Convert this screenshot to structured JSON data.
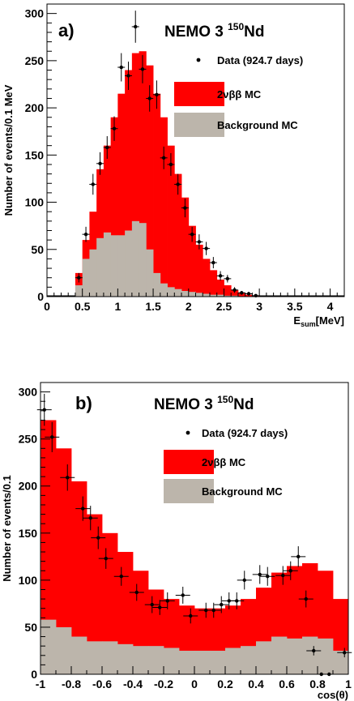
{
  "colors": {
    "signal": "#ff0000",
    "background": "#bcb5ab",
    "data": "#000000",
    "axis": "#000000"
  },
  "chart_data": [
    {
      "type": "bar",
      "panel_label": "a)",
      "experiment": "NEMO 3",
      "isotope_mass": "150",
      "isotope_symbol": "Nd",
      "ylabel": "Number of events/0.1 MeV",
      "xlabel_main": "E",
      "xlabel_sub": "sum",
      "xlabel_unit": "[MeV]",
      "xlim": [
        0,
        4.2
      ],
      "ylim": [
        0,
        310
      ],
      "x_ticks": [
        0,
        0.5,
        1,
        1.5,
        2,
        2.5,
        3,
        3.5,
        4
      ],
      "x_tick_labels": [
        "0",
        "0.5",
        "1",
        "1.5",
        "2",
        "2.5",
        "3",
        "3.5",
        "4"
      ],
      "y_ticks": [
        0,
        50,
        100,
        150,
        200,
        250,
        300
      ],
      "y_tick_labels": [
        "0",
        "50",
        "100",
        "150",
        "200",
        "250",
        "300"
      ],
      "legend": [
        {
          "key": "data",
          "label": "Data (924.7 days)"
        },
        {
          "key": "signal",
          "label": "2νββ MC"
        },
        {
          "key": "background",
          "label": "Background MC"
        }
      ],
      "bin_edges": [
        0.4,
        0.5,
        0.6,
        0.7,
        0.8,
        0.9,
        1.0,
        1.1,
        1.2,
        1.3,
        1.4,
        1.5,
        1.6,
        1.7,
        1.8,
        1.9,
        2.0,
        2.1,
        2.2,
        2.3,
        2.4,
        2.5,
        2.6,
        2.7,
        2.8,
        2.9,
        3.0
      ],
      "total_mc": [
        25,
        60,
        90,
        135,
        160,
        190,
        215,
        240,
        258,
        260,
        245,
        215,
        190,
        160,
        130,
        105,
        75,
        55,
        40,
        28,
        18,
        12,
        7,
        4,
        2,
        1
      ],
      "background_mc": [
        12,
        40,
        50,
        62,
        68,
        65,
        65,
        70,
        80,
        78,
        50,
        25,
        14,
        10,
        8,
        6,
        5,
        4,
        3,
        2,
        2,
        1,
        1,
        0,
        0,
        0
      ],
      "data_points": {
        "x": [
          0.45,
          0.55,
          0.65,
          0.75,
          0.85,
          0.95,
          1.05,
          1.15,
          1.25,
          1.35,
          1.45,
          1.55,
          1.65,
          1.75,
          1.85,
          1.95,
          2.05,
          2.15,
          2.25,
          2.35,
          2.45,
          2.55,
          2.65,
          2.75,
          2.85,
          2.95
        ],
        "y": [
          20,
          66,
          119,
          141,
          158,
          178,
          243,
          234,
          286,
          241,
          210,
          214,
          147,
          140,
          119,
          94,
          66,
          58,
          51,
          36,
          22,
          19,
          7,
          4,
          3,
          1
        ],
        "yerr": [
          5,
          8,
          11,
          12,
          12,
          13,
          15,
          15,
          17,
          15,
          14,
          15,
          12,
          12,
          11,
          10,
          8,
          8,
          7,
          6,
          5,
          4,
          3,
          2,
          2,
          1
        ]
      }
    },
    {
      "type": "bar",
      "panel_label": "b)",
      "experiment": "NEMO 3",
      "isotope_mass": "150",
      "isotope_symbol": "Nd",
      "ylabel": "Number of events/0.1",
      "xlabel": "cos(θ)",
      "xlim": [
        -1,
        1
      ],
      "ylim": [
        0,
        310
      ],
      "x_ticks": [
        -1,
        -0.8,
        -0.6,
        -0.4,
        -0.2,
        0,
        0.2,
        0.4,
        0.6,
        0.8,
        1
      ],
      "x_tick_labels": [
        "-1",
        "-0.8",
        "-0.6",
        "-0.4",
        "-0.2",
        "0",
        "0.2",
        "0.4",
        "0.6",
        "0.8",
        "1"
      ],
      "y_ticks": [
        0,
        50,
        100,
        150,
        200,
        250,
        300
      ],
      "y_tick_labels": [
        "0",
        "50",
        "100",
        "150",
        "200",
        "250",
        "300"
      ],
      "legend": [
        {
          "key": "data",
          "label": "Data (924.7 days)"
        },
        {
          "key": "signal",
          "label": "2νββ MC"
        },
        {
          "key": "background",
          "label": "Background MC"
        }
      ],
      "bin_edges": [
        -1,
        -0.9,
        -0.8,
        -0.7,
        -0.6,
        -0.5,
        -0.4,
        -0.3,
        -0.2,
        -0.1,
        0,
        0.1,
        0.2,
        0.3,
        0.4,
        0.5,
        0.6,
        0.7,
        0.8,
        0.9,
        1.0
      ],
      "total_mc": [
        270,
        240,
        205,
        170,
        150,
        130,
        110,
        90,
        80,
        73,
        70,
        70,
        73,
        80,
        92,
        108,
        115,
        118,
        110,
        80
      ],
      "background_mc": [
        58,
        50,
        40,
        35,
        35,
        32,
        30,
        30,
        28,
        25,
        25,
        25,
        28,
        30,
        35,
        40,
        38,
        40,
        38,
        25
      ],
      "data_points": {
        "x": [
          -0.975,
          -0.925,
          -0.825,
          -0.725,
          -0.675,
          -0.625,
          -0.575,
          -0.475,
          -0.375,
          -0.275,
          -0.225,
          -0.175,
          -0.075,
          -0.025,
          0.075,
          0.125,
          0.175,
          0.225,
          0.275,
          0.325,
          0.425,
          0.475,
          0.575,
          0.625,
          0.675,
          0.725,
          0.775,
          0.825,
          0.875,
          0.975
        ],
        "y": [
          281,
          252,
          209,
          176,
          166,
          145,
          123,
          104,
          87,
          74,
          71,
          78,
          84,
          62,
          68,
          68,
          74,
          78,
          78,
          100,
          106,
          104,
          105,
          110,
          125,
          80,
          25,
          0,
          0,
          23
        ],
        "yerr": [
          17,
          16,
          14,
          13,
          13,
          12,
          11,
          10,
          9,
          9,
          8,
          9,
          9,
          8,
          8,
          8,
          9,
          9,
          9,
          10,
          10,
          10,
          10,
          10,
          11,
          9,
          5,
          0,
          0,
          5
        ]
      }
    }
  ]
}
